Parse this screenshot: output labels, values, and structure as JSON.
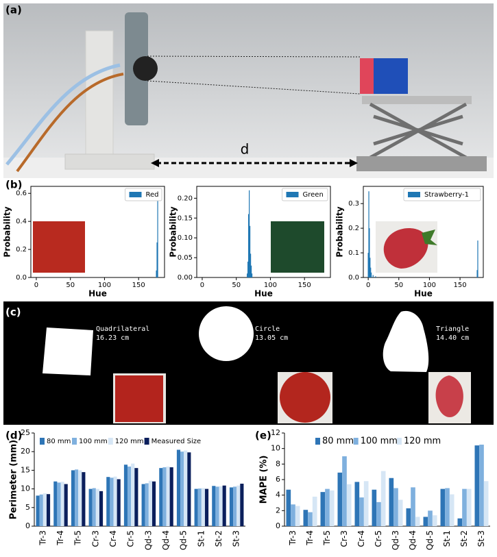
{
  "photo": {
    "label": "(a)",
    "distance": "d"
  },
  "segmentation": {
    "label": "(c)",
    "shapes": [
      {
        "name": "Quadrilateral",
        "size": "16.23 cm"
      },
      {
        "name": "Circle",
        "size": "13.05 cm"
      },
      {
        "name": "Triangle",
        "size": "14.40 cm"
      }
    ]
  },
  "chart_data": [
    {
      "type": "histogram",
      "panel": "(b)",
      "xlabel": "Hue",
      "ylabel": "Probability",
      "series": [
        {
          "name": "Red",
          "color": "#1f77b4",
          "x": [
            176,
            177,
            178
          ],
          "values": [
            0.05,
            0.25,
            0.62
          ]
        }
      ],
      "xlim": [
        -8,
        188
      ],
      "xticks": [
        0,
        50,
        100,
        150
      ],
      "ylim": [
        0,
        0.65
      ],
      "yticks": [
        {
          "value": 0,
          "label": "0.0"
        },
        0.2,
        0.4,
        0.6
      ]
    },
    {
      "type": "histogram",
      "xlabel": "Hue",
      "ylabel": "Probability",
      "series": [
        {
          "name": "Green",
          "color": "#1f77b4",
          "x": [
            66,
            67,
            68,
            69,
            70,
            71,
            72,
            73
          ],
          "values": [
            0.01,
            0.04,
            0.16,
            0.22,
            0.13,
            0.06,
            0.03,
            0.01
          ]
        }
      ],
      "xlim": [
        -8,
        188
      ],
      "xticks": [
        0,
        50,
        100,
        150
      ],
      "ylim": [
        0,
        0.23
      ],
      "yticks": [
        {
          "value": 0,
          "label": "0.00"
        },
        0.05,
        {
          "value": 0.1,
          "label": "0.10"
        },
        0.15,
        {
          "value": 0.2,
          "label": "0.20"
        }
      ]
    },
    {
      "type": "histogram",
      "xlabel": "Hue",
      "ylabel": "Probability",
      "series": [
        {
          "name": "Strawberry-1",
          "color": "#1f77b4",
          "x": [
            0,
            1,
            2,
            3,
            4,
            5,
            8,
            12,
            178,
            179
          ],
          "values": [
            0.1,
            0.35,
            0.2,
            0.08,
            0.04,
            0.02,
            0.01,
            0.005,
            0.03,
            0.15
          ]
        }
      ],
      "xlim": [
        -8,
        188
      ],
      "xticks": [
        0,
        50,
        100,
        150
      ],
      "ylim": [
        0,
        0.37
      ],
      "yticks": [
        {
          "value": 0,
          "label": "0.0"
        },
        0.1,
        0.2,
        0.3
      ]
    },
    {
      "type": "bar",
      "panel": "(d)",
      "ylabel": "Perimeter (mm)",
      "categories": [
        "Tr-3",
        "Tr-4",
        "Tr-5",
        "Cr-3",
        "Cr-4",
        "Cr-5",
        "Qd-3",
        "Qd-4",
        "Qd-5",
        "St-1",
        "St-2",
        "St-3"
      ],
      "series": [
        {
          "name": "80 mm",
          "color": "#2e75b6",
          "values": [
            8.2,
            12.0,
            15.0,
            10.0,
            13.2,
            16.5,
            11.3,
            15.6,
            20.5,
            10.0,
            10.8,
            10.4
          ]
        },
        {
          "name": "100 mm",
          "color": "#7fb0de",
          "values": [
            8.5,
            11.7,
            15.2,
            10.2,
            13.0,
            16.0,
            11.5,
            15.8,
            20.0,
            10.1,
            10.6,
            10.6
          ]
        },
        {
          "name": "120 mm",
          "color": "#d6e6f5",
          "values": [
            8.8,
            11.9,
            15.0,
            10.0,
            13.3,
            16.8,
            12.2,
            16.0,
            20.3,
            10.2,
            10.7,
            10.9
          ]
        },
        {
          "name": "Measured Size",
          "color": "#0b1f5c",
          "values": [
            8.6,
            11.3,
            14.5,
            9.4,
            12.6,
            15.6,
            12.0,
            15.8,
            19.8,
            10.0,
            10.9,
            11.4
          ]
        }
      ],
      "ylim": [
        0,
        25
      ],
      "yticks": [
        0,
        5,
        10,
        15,
        20,
        25
      ]
    },
    {
      "type": "bar",
      "panel": "(e)",
      "ylabel": "MAPE (%)",
      "categories": [
        "Tr-3",
        "Tr-4",
        "Tr-5",
        "Cr-3",
        "Cr-4",
        "Cr-5",
        "Qd-3",
        "Qd-4",
        "Qd-5",
        "St-1",
        "St-2",
        "St-3"
      ],
      "series": [
        {
          "name": "80 mm",
          "color": "#2e75b6",
          "values": [
            4.7,
            2.1,
            4.4,
            6.9,
            5.7,
            4.7,
            6.2,
            2.3,
            1.2,
            4.8,
            1.0,
            10.4
          ]
        },
        {
          "name": "100 mm",
          "color": "#7fb0de",
          "values": [
            2.8,
            1.8,
            4.8,
            9.0,
            3.7,
            3.1,
            4.9,
            5.0,
            2.0,
            4.9,
            4.8,
            10.5
          ]
        },
        {
          "name": "120 mm",
          "color": "#d6e6f5",
          "values": [
            2.6,
            3.8,
            4.6,
            5.4,
            5.8,
            7.1,
            3.4,
            1.2,
            1.4,
            4.1,
            4.8,
            5.8
          ]
        }
      ],
      "ylim": [
        0,
        12
      ],
      "yticks": [
        0,
        2,
        4,
        6,
        8,
        10,
        12
      ]
    }
  ]
}
